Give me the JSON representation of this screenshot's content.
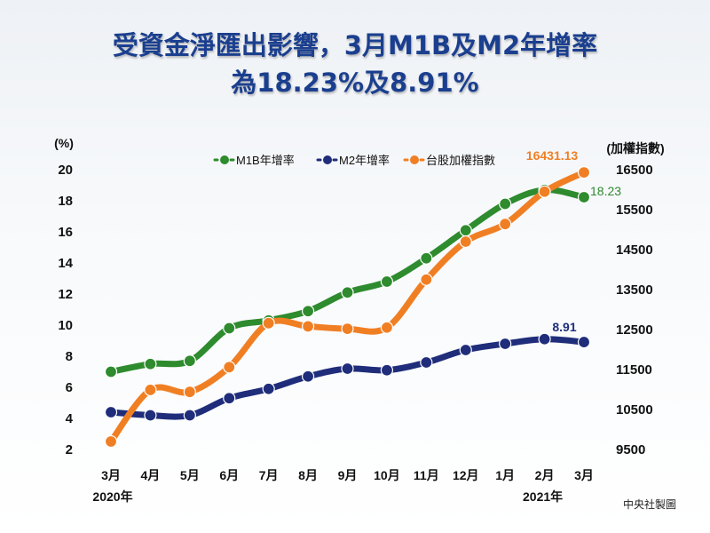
{
  "title_line1": "受資金淨匯出影響，3月M1B及M2年增率",
  "title_line2": "為18.23%及8.91%",
  "credit": "中央社製圖",
  "chart_data": {
    "type": "line",
    "categories": [
      "3月",
      "4月",
      "5月",
      "6月",
      "7月",
      "8月",
      "9月",
      "10月",
      "11月",
      "12月",
      "1月",
      "2月",
      "3月"
    ],
    "year_labels": [
      {
        "label": "2020年",
        "at_index": 0
      },
      {
        "label": "2021年",
        "at_index": 11
      }
    ],
    "left_axis": {
      "label": "(%)",
      "ylim": [
        2,
        20
      ],
      "ticks": [
        2,
        4,
        6,
        8,
        10,
        12,
        14,
        16,
        18,
        20
      ]
    },
    "right_axis": {
      "label": "(加權指數)",
      "ylim": [
        9500,
        16500
      ],
      "ticks": [
        9500,
        10500,
        11500,
        12500,
        13500,
        14500,
        15500,
        16500
      ]
    },
    "legend": [
      "M1B年增率",
      "M2年增率",
      "台股加權指數"
    ],
    "series": [
      {
        "name": "M1B年增率",
        "axis": "left",
        "color": "#2e8b2e",
        "values": [
          7.0,
          7.5,
          7.7,
          9.8,
          10.3,
          10.9,
          12.1,
          12.8,
          14.3,
          16.1,
          17.8,
          18.7,
          18.23
        ],
        "end_label": "18.23"
      },
      {
        "name": "M2年增率",
        "axis": "left",
        "color": "#1f2d7a",
        "values": [
          4.4,
          4.2,
          4.2,
          5.3,
          5.9,
          6.7,
          7.2,
          7.1,
          7.6,
          8.4,
          8.8,
          9.1,
          8.91
        ],
        "end_label": "8.91"
      },
      {
        "name": "台股加權指數",
        "axis": "right",
        "color": "#f07f24",
        "values": [
          9700,
          10990,
          10940,
          11560,
          12660,
          12580,
          12520,
          12550,
          13750,
          14700,
          15140,
          15950,
          16431.13
        ],
        "end_label": "16431.13"
      }
    ]
  }
}
